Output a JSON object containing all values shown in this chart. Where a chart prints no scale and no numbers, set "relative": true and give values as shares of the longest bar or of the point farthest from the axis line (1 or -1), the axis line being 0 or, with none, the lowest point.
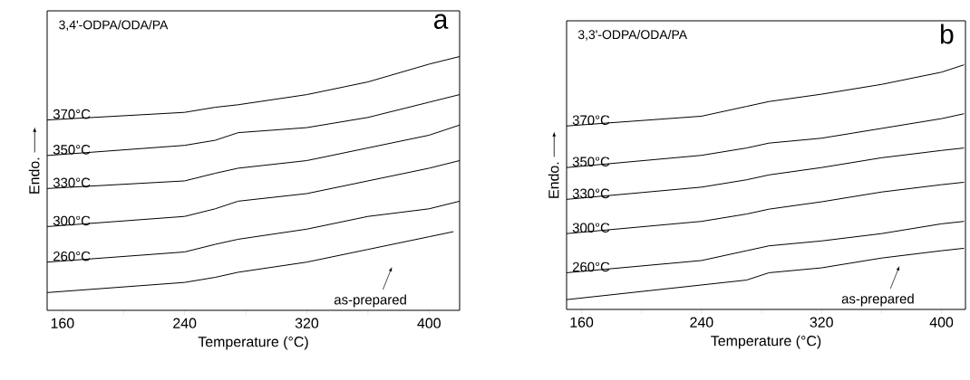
{
  "chart_data": [
    {
      "type": "line",
      "title": "3,4'-ODPA/ODA/PA",
      "xlabel": "Temperature (°C)",
      "ylabel": "Endo.",
      "relative": true,
      "xlim": [
        150,
        420
      ],
      "xticks": [
        160,
        {
          "value": 200,
          "label": null
        },
        240,
        {
          "value": 280,
          "label": null
        },
        320,
        {
          "value": 360,
          "label": null
        },
        400
      ],
      "annotations": [
        "a",
        "as-prepared"
      ],
      "series": [
        {
          "name": "370°C",
          "color": "#000000",
          "x": [
            150,
            240,
            260,
            275,
            320,
            360,
            400,
            420
          ],
          "values": [
            0.75,
            0.78,
            0.8,
            0.81,
            0.85,
            0.9,
            0.97,
            1.0
          ]
        },
        {
          "name": "350°C",
          "color": "#000000",
          "x": [
            150,
            240,
            260,
            275,
            320,
            360,
            400,
            420
          ],
          "values": [
            0.61,
            0.65,
            0.67,
            0.7,
            0.72,
            0.76,
            0.82,
            0.85
          ]
        },
        {
          "name": "330°C",
          "color": "#000000",
          "x": [
            150,
            240,
            260,
            275,
            320,
            360,
            400,
            420
          ],
          "values": [
            0.48,
            0.51,
            0.54,
            0.56,
            0.59,
            0.64,
            0.69,
            0.73
          ]
        },
        {
          "name": "300°C",
          "color": "#000000",
          "x": [
            150,
            240,
            260,
            275,
            320,
            360,
            400,
            420
          ],
          "values": [
            0.33,
            0.37,
            0.4,
            0.43,
            0.46,
            0.51,
            0.56,
            0.59
          ]
        },
        {
          "name": "260°C",
          "color": "#000000",
          "x": [
            150,
            240,
            260,
            275,
            320,
            360,
            400,
            420
          ],
          "values": [
            0.19,
            0.23,
            0.26,
            0.28,
            0.32,
            0.37,
            0.4,
            0.43
          ]
        },
        {
          "color": "#000000",
          "x": [
            150,
            240,
            260,
            275,
            320,
            360,
            400,
            416
          ],
          "values": [
            0.07,
            0.11,
            0.13,
            0.15,
            0.19,
            0.24,
            0.29,
            0.31
          ]
        }
      ]
    },
    {
      "type": "line",
      "title": "3,3'-ODPA/ODA/PA",
      "xlabel": "Temperature (°C)",
      "ylabel": "Endo.",
      "relative": true,
      "xlim": [
        150,
        416
      ],
      "xticks": [
        160,
        {
          "value": 200,
          "label": null
        },
        240,
        {
          "value": 280,
          "label": null
        },
        320,
        {
          "value": 360,
          "label": null
        },
        400
      ],
      "annotations": [
        "b",
        "as-prepared"
      ],
      "series": [
        {
          "name": "370°C",
          "color": "#000000",
          "x": [
            150,
            240,
            270,
            285,
            320,
            360,
            400,
            415
          ],
          "values": [
            0.75,
            0.79,
            0.83,
            0.85,
            0.88,
            0.92,
            0.97,
            1.0
          ]
        },
        {
          "name": "350°C",
          "color": "#000000",
          "x": [
            150,
            240,
            270,
            285,
            320,
            360,
            400,
            415
          ],
          "values": [
            0.58,
            0.63,
            0.66,
            0.68,
            0.7,
            0.74,
            0.78,
            0.8
          ]
        },
        {
          "name": "330°C",
          "color": "#000000",
          "x": [
            150,
            240,
            270,
            285,
            320,
            360,
            400,
            415
          ],
          "values": [
            0.45,
            0.5,
            0.53,
            0.55,
            0.58,
            0.62,
            0.65,
            0.66
          ]
        },
        {
          "name": "300°C",
          "color": "#000000",
          "x": [
            150,
            240,
            270,
            285,
            320,
            360,
            400,
            415
          ],
          "values": [
            0.31,
            0.36,
            0.39,
            0.41,
            0.44,
            0.48,
            0.51,
            0.52
          ]
        },
        {
          "name": "260°C",
          "color": "#000000",
          "x": [
            150,
            240,
            270,
            285,
            320,
            360,
            400,
            415
          ],
          "values": [
            0.15,
            0.2,
            0.24,
            0.26,
            0.28,
            0.31,
            0.35,
            0.36
          ]
        },
        {
          "color": "#000000",
          "x": [
            150,
            240,
            270,
            285,
            320,
            360,
            400,
            415
          ],
          "values": [
            0.04,
            0.1,
            0.12,
            0.15,
            0.17,
            0.21,
            0.24,
            0.25
          ]
        }
      ]
    }
  ]
}
